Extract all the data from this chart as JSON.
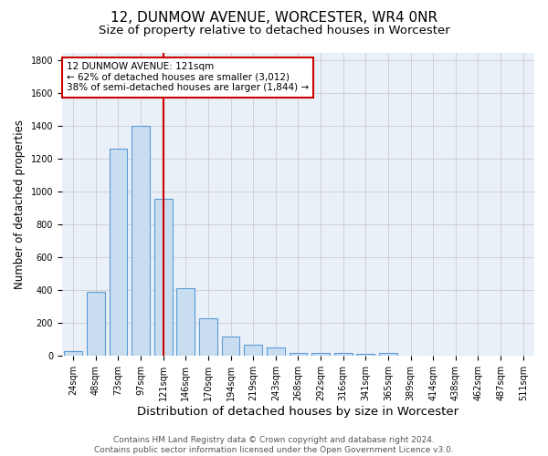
{
  "title": "12, DUNMOW AVENUE, WORCESTER, WR4 0NR",
  "subtitle": "Size of property relative to detached houses in Worcester",
  "xlabel": "Distribution of detached houses by size in Worcester",
  "ylabel": "Number of detached properties",
  "categories": [
    "24sqm",
    "48sqm",
    "73sqm",
    "97sqm",
    "121sqm",
    "146sqm",
    "170sqm",
    "194sqm",
    "219sqm",
    "243sqm",
    "268sqm",
    "292sqm",
    "316sqm",
    "341sqm",
    "365sqm",
    "389sqm",
    "414sqm",
    "438sqm",
    "462sqm",
    "487sqm",
    "511sqm"
  ],
  "values": [
    25,
    390,
    1265,
    1400,
    955,
    410,
    228,
    115,
    65,
    48,
    18,
    15,
    15,
    10,
    18,
    0,
    0,
    0,
    0,
    0,
    0
  ],
  "bar_color": "#c9ddf0",
  "bar_edge_color": "#5b9bd5",
  "vline_color": "#cc0000",
  "vline_cat": "121sqm",
  "annotation_text": "12 DUNMOW AVENUE: 121sqm\n← 62% of detached houses are smaller (3,012)\n38% of semi-detached houses are larger (1,844) →",
  "annotation_box_color": "#ffffff",
  "annotation_box_edge_color": "#cc0000",
  "ylim": [
    0,
    1850
  ],
  "yticks": [
    0,
    200,
    400,
    600,
    800,
    1000,
    1200,
    1400,
    1600,
    1800
  ],
  "grid_color": "#cccccc",
  "bg_color": "#eaf0f8",
  "footer_line1": "Contains HM Land Registry data © Crown copyright and database right 2024.",
  "footer_line2": "Contains public sector information licensed under the Open Government Licence v3.0.",
  "title_fontsize": 11,
  "subtitle_fontsize": 9.5,
  "xlabel_fontsize": 9.5,
  "ylabel_fontsize": 8.5,
  "tick_fontsize": 7,
  "footer_fontsize": 6.5,
  "annotation_fontsize": 7.5
}
